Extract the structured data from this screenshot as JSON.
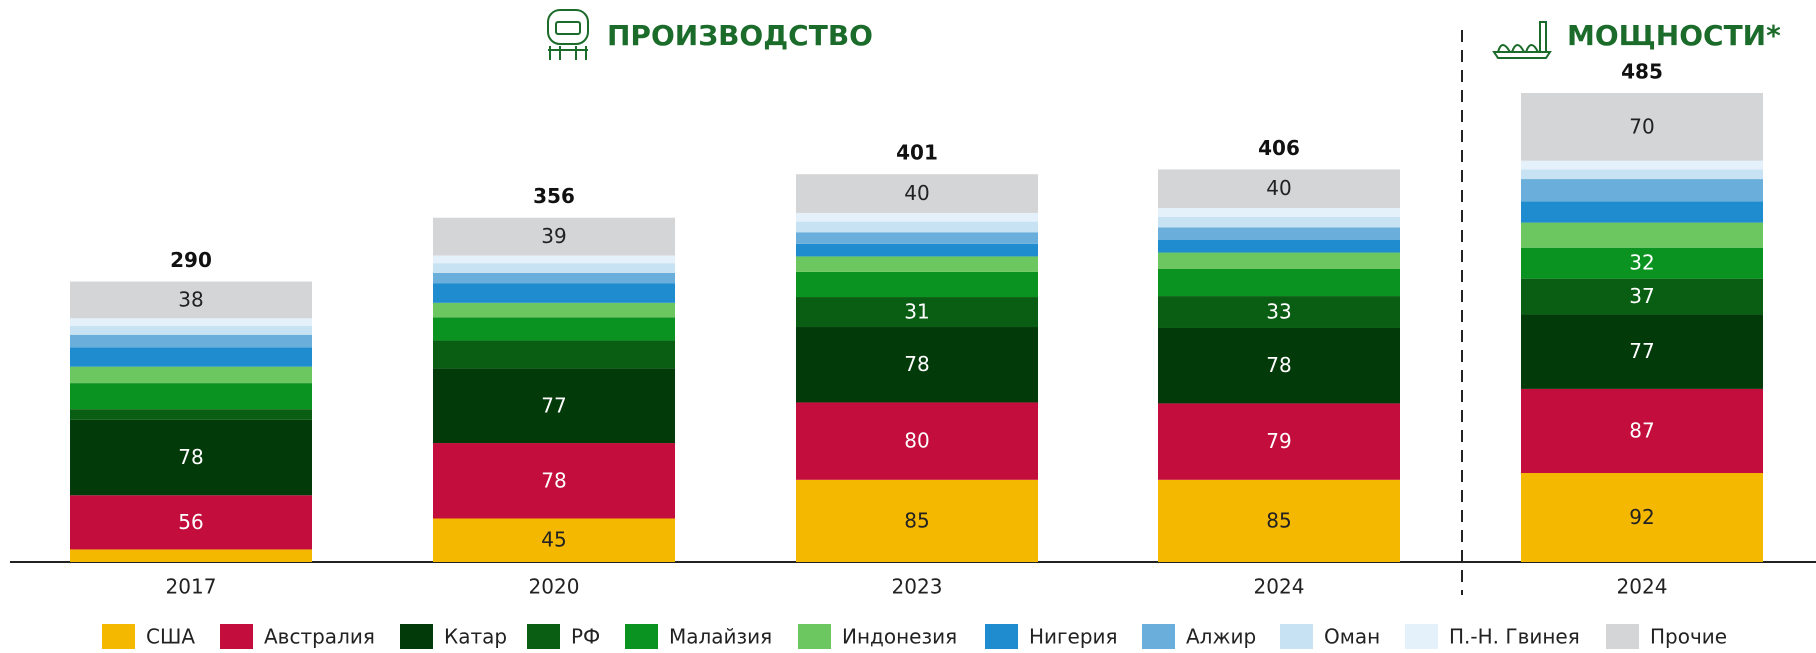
{
  "chart_data": {
    "type": "stacked_bar",
    "sections": [
      "ПРОИЗВОДСТВО",
      "МОЩНОСТИ*"
    ],
    "categories": [
      "2017",
      "2020",
      "2023",
      "2024",
      "2024"
    ],
    "totals": [
      290,
      356,
      401,
      406,
      485
    ],
    "ylim": [
      0,
      500
    ],
    "series": [
      {
        "name": "США",
        "color": "#f5b800",
        "values": [
          13,
          45,
          85,
          85,
          92
        ],
        "value_labels": [
          null,
          "45",
          "85",
          "85",
          "92"
        ]
      },
      {
        "name": "Австралия",
        "color": "#c30d3c",
        "values": [
          56,
          78,
          80,
          79,
          87
        ],
        "value_labels": [
          "56",
          "78",
          "80",
          "79",
          "87"
        ]
      },
      {
        "name": "Катар",
        "color": "#033a0a",
        "values": [
          78,
          77,
          78,
          78,
          77
        ],
        "value_labels": [
          "78",
          "77",
          "78",
          "78",
          "77"
        ]
      },
      {
        "name": "РФ",
        "color": "#0a5e14",
        "values": [
          11,
          29,
          31,
          33,
          37
        ],
        "value_labels": [
          null,
          null,
          "31",
          "33",
          "37"
        ]
      },
      {
        "name": "Малайзия",
        "color": "#0a9320",
        "values": [
          27,
          24,
          26,
          28,
          32
        ],
        "value_labels": [
          null,
          null,
          null,
          null,
          "32"
        ]
      },
      {
        "name": "Индонезия",
        "color": "#6cc760",
        "values": [
          17,
          15,
          16,
          17,
          26
        ]
      },
      {
        "name": "Нигерия",
        "color": "#1e8ccf",
        "values": [
          20,
          20,
          13,
          13,
          22
        ]
      },
      {
        "name": "Алжир",
        "color": "#6aafdb",
        "values": [
          13,
          11,
          12,
          13,
          23
        ]
      },
      {
        "name": "Оман",
        "color": "#c7e2f2",
        "values": [
          9,
          10,
          11,
          11,
          10
        ]
      },
      {
        "name": "П.-Н. Гвинея",
        "color": "#e4f1fa",
        "values": [
          8,
          8,
          9,
          9,
          9
        ]
      },
      {
        "name": "Прочие",
        "color": "#d4d5d7",
        "values": [
          38,
          39,
          40,
          40,
          70
        ],
        "value_labels": [
          "38",
          "39",
          "40",
          "40",
          "70"
        ]
      }
    ]
  }
}
